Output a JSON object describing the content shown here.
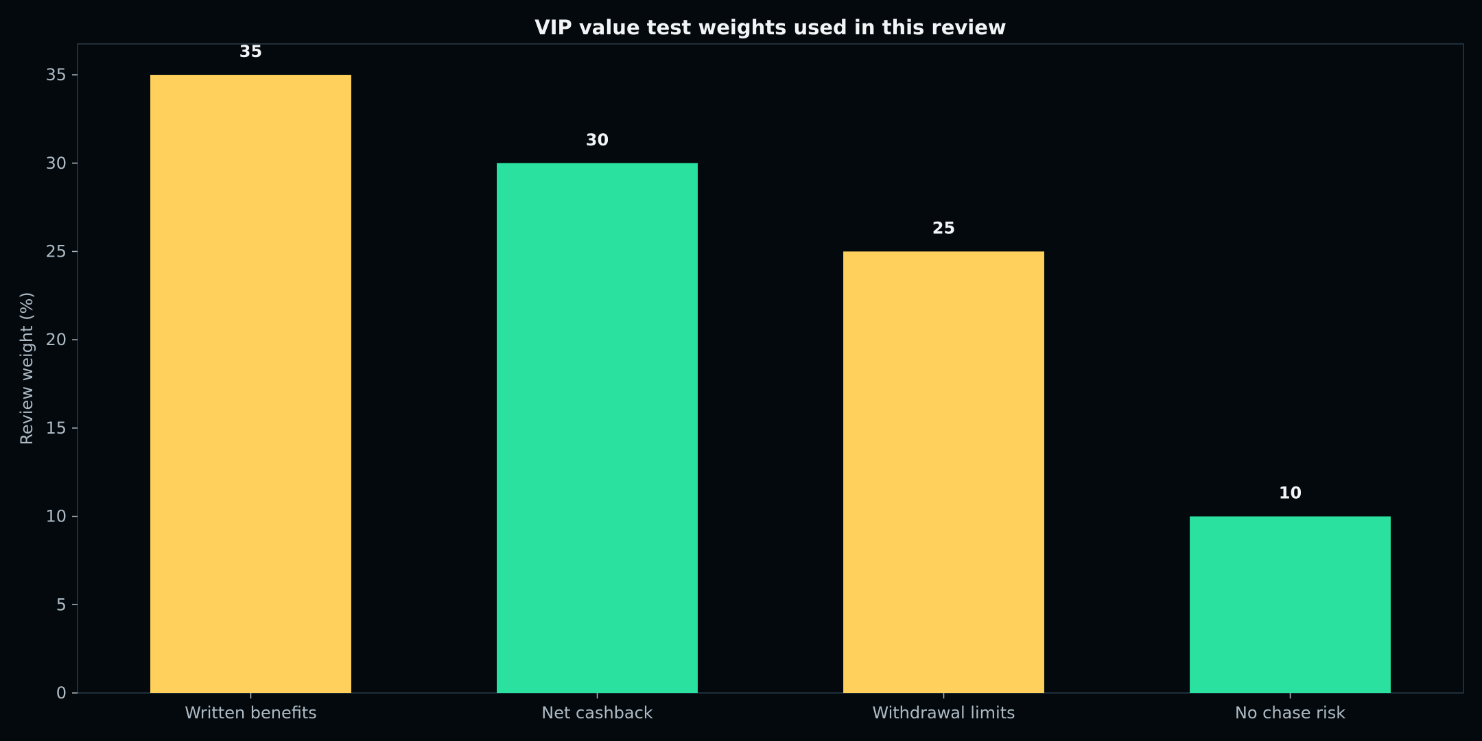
{
  "chart_data": {
    "type": "bar",
    "title": "VIP value test weights used in this review",
    "xlabel": "",
    "ylabel": "Review weight (%)",
    "categories": [
      "Written benefits",
      "Net cashback",
      "Withdrawal limits",
      "No chase risk"
    ],
    "values": [
      35,
      30,
      25,
      10
    ],
    "data_labels": [
      "35",
      "30",
      "25",
      "10"
    ],
    "bar_colors": [
      "#ffd15c",
      "#2ae1a0",
      "#ffd15c",
      "#2ae1a0"
    ],
    "ylim": [
      0,
      36.75
    ],
    "yticks": [
      0,
      5,
      10,
      15,
      20,
      25,
      30,
      35
    ],
    "grid": false,
    "legend": "none"
  },
  "colors": {
    "background": "#03090d",
    "axis_frame": "#2b3a48",
    "text": "#aebbc5",
    "title": "#f2f4f6"
  }
}
